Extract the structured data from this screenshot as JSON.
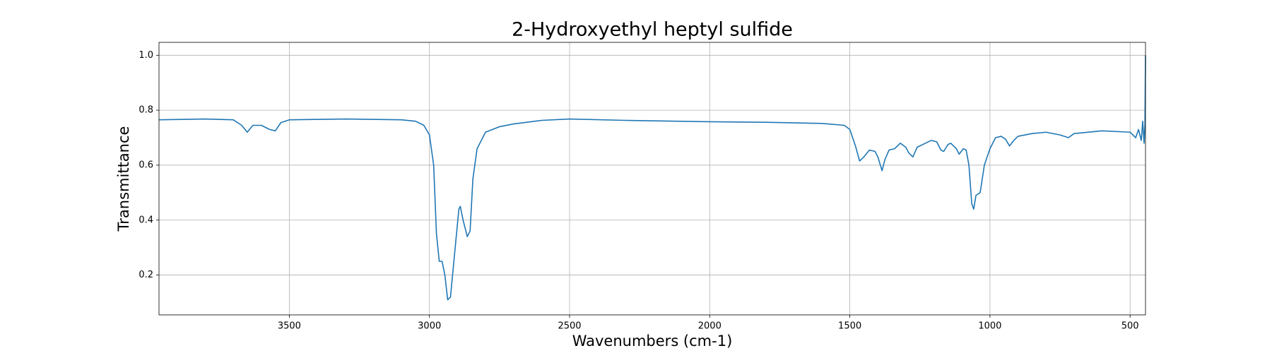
{
  "chart_data": {
    "type": "line",
    "title": "2-Hydroxyethyl heptyl sulfide",
    "xlabel": "Wavenumbers (cm-1)",
    "ylabel": "Transmittance",
    "color": "#1f77b4",
    "grid": true,
    "xlim": [
      3965,
      445
    ],
    "ylim": [
      0.055,
      1.047
    ],
    "xticks": [
      3500,
      3000,
      2500,
      2000,
      1500,
      1000,
      500
    ],
    "yticks": [
      0.2,
      0.4,
      0.6,
      0.8,
      {
        "value": 1,
        "label": "1.0"
      }
    ],
    "x": [
      3965,
      3800,
      3700,
      3670,
      3650,
      3630,
      3600,
      3570,
      3550,
      3530,
      3500,
      3300,
      3100,
      3050,
      3020,
      3000,
      2985,
      2975,
      2965,
      2955,
      2945,
      2935,
      2925,
      2910,
      2895,
      2890,
      2880,
      2865,
      2855,
      2845,
      2830,
      2800,
      2750,
      2700,
      2600,
      2500,
      2300,
      2000,
      1800,
      1600,
      1520,
      1500,
      1480,
      1465,
      1450,
      1430,
      1410,
      1400,
      1385,
      1375,
      1360,
      1340,
      1320,
      1300,
      1290,
      1275,
      1260,
      1230,
      1210,
      1190,
      1175,
      1165,
      1150,
      1140,
      1120,
      1110,
      1095,
      1085,
      1075,
      1065,
      1058,
      1050,
      1035,
      1020,
      1000,
      980,
      960,
      945,
      930,
      915,
      900,
      850,
      800,
      750,
      720,
      700,
      600,
      500,
      480,
      470,
      460,
      455,
      450,
      447,
      445
    ],
    "values": [
      0.765,
      0.768,
      0.765,
      0.745,
      0.72,
      0.745,
      0.745,
      0.73,
      0.725,
      0.755,
      0.765,
      0.768,
      0.765,
      0.76,
      0.745,
      0.71,
      0.6,
      0.35,
      0.25,
      0.25,
      0.2,
      0.11,
      0.12,
      0.28,
      0.44,
      0.45,
      0.4,
      0.34,
      0.36,
      0.55,
      0.66,
      0.72,
      0.74,
      0.75,
      0.763,
      0.768,
      0.763,
      0.758,
      0.756,
      0.752,
      0.745,
      0.73,
      0.67,
      0.615,
      0.63,
      0.655,
      0.65,
      0.63,
      0.58,
      0.62,
      0.655,
      0.66,
      0.68,
      0.665,
      0.645,
      0.63,
      0.665,
      0.68,
      0.69,
      0.685,
      0.655,
      0.65,
      0.675,
      0.68,
      0.66,
      0.64,
      0.66,
      0.655,
      0.6,
      0.46,
      0.44,
      0.49,
      0.5,
      0.6,
      0.66,
      0.7,
      0.705,
      0.695,
      0.67,
      0.69,
      0.705,
      0.715,
      0.72,
      0.71,
      0.7,
      0.715,
      0.725,
      0.72,
      0.7,
      0.73,
      0.69,
      0.76,
      0.68,
      0.75,
      1.0
    ]
  }
}
